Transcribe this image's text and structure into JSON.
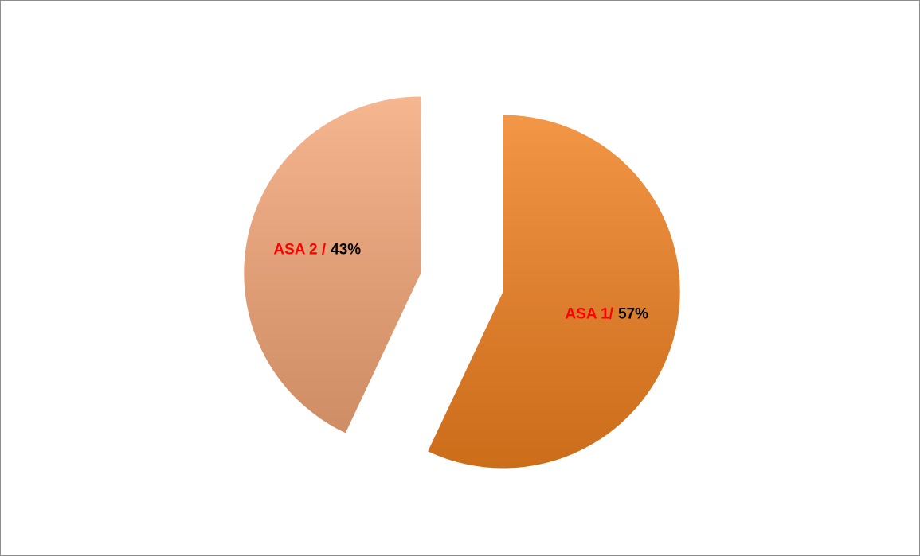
{
  "chart_data": {
    "type": "pie",
    "categories": [
      "ASA 1/",
      "ASA 2 /"
    ],
    "values": [
      57,
      43
    ],
    "value_labels": [
      "57%",
      "43%"
    ],
    "colors": [
      "#f0801f",
      "#f4a677"
    ],
    "category_label_color": "#ff0000",
    "value_label_color": "#000000"
  }
}
